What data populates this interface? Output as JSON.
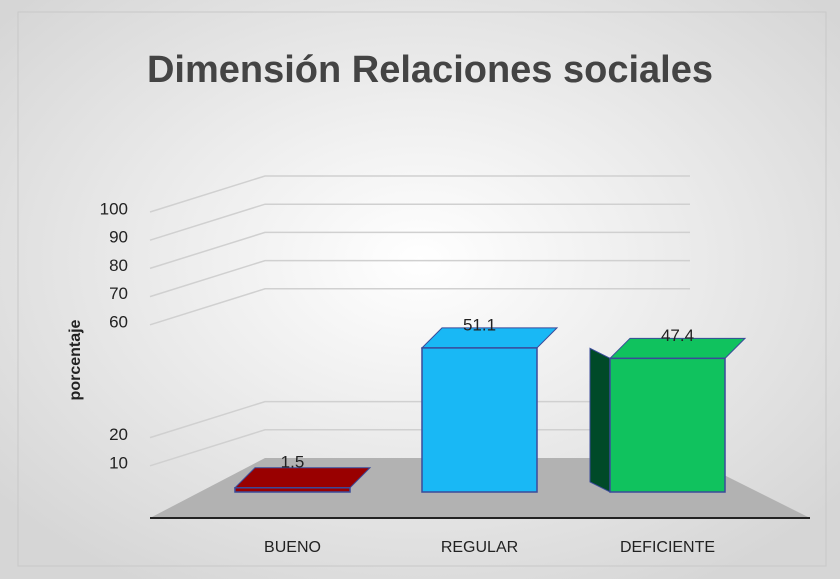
{
  "chart_data": {
    "type": "bar3d",
    "title": "Dimensión Relaciones sociales",
    "ylabel": "porcentaje",
    "categories": [
      "BUENO",
      "REGULAR",
      "DEFICIENTE"
    ],
    "values": [
      1.5,
      51.1,
      47.4
    ],
    "colors": [
      "#990000",
      "#19b8f5",
      "#10c25e"
    ],
    "ylim": [
      0,
      100
    ],
    "yticks": [
      100,
      90,
      80,
      70,
      60,
      20,
      10
    ],
    "grid": true
  }
}
